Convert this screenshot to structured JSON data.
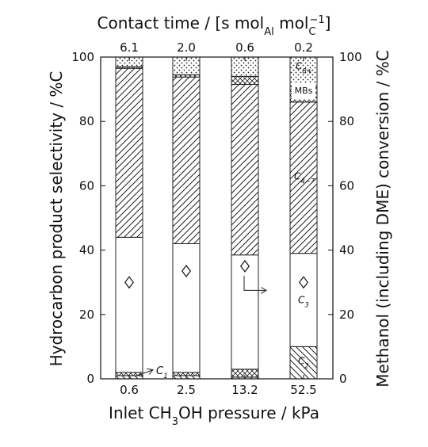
{
  "chart_data": {
    "type": "bar",
    "stacked": true,
    "grid": false,
    "legend": "none",
    "title": "",
    "categories": [
      "0.6",
      "2.5",
      "13.2",
      "52.5"
    ],
    "top_axis": {
      "label_main": "Contact time",
      "label_unit_prefix": "s mol",
      "label_unit_sub1": "Al",
      "label_unit_mid": " mol",
      "label_unit_sub2": "C",
      "label_unit_sup": "−1",
      "ticks": [
        "6.1",
        "2.0",
        "0.6",
        "0.2"
      ]
    },
    "xlabel_main": "Inlet CH",
    "xlabel_sub": "3",
    "xlabel_rest": "OH pressure / kPa",
    "ylabel": "Hydrocarbon product selectivity / %C",
    "y2label": "Methanol (including DME) conversion / %C",
    "ylim": [
      0,
      100
    ],
    "y2lim": [
      0,
      100
    ],
    "yticks": [
      "0",
      "20",
      "40",
      "60",
      "80",
      "100"
    ],
    "series": [
      {
        "name": "C2",
        "pattern": "backslash",
        "values": [
          1.0,
          1.0,
          0.5,
          10.0
        ]
      },
      {
        "name": "C1",
        "pattern": "crosshatch",
        "values": [
          1.0,
          1.0,
          2.5,
          0.0
        ]
      },
      {
        "name": "C3",
        "pattern": "white",
        "values": [
          42.0,
          40.0,
          35.5,
          29.0
        ]
      },
      {
        "name": "C4-7",
        "pattern": "slash",
        "values": [
          52.5,
          51.8,
          53.0,
          47.0
        ]
      },
      {
        "name": "MBs",
        "pattern": "crosshatch",
        "values": [
          0.5,
          0.7,
          2.5,
          5.0
        ]
      },
      {
        "name": "C8+",
        "pattern": "dots",
        "values": [
          3.0,
          5.5,
          6.0,
          9.0
        ]
      }
    ],
    "conversion": [
      30,
      33.5,
      35,
      30
    ],
    "annotations": {
      "c1": {
        "base": "C",
        "sub": "1"
      },
      "c2": {
        "base": "C",
        "sub": "2"
      },
      "c3": {
        "base": "C",
        "sub": "3"
      },
      "c47": {
        "base": "C",
        "sub": "4−7"
      },
      "c8": {
        "base": "C",
        "sub": "8+"
      },
      "mbs": "MBs"
    }
  }
}
